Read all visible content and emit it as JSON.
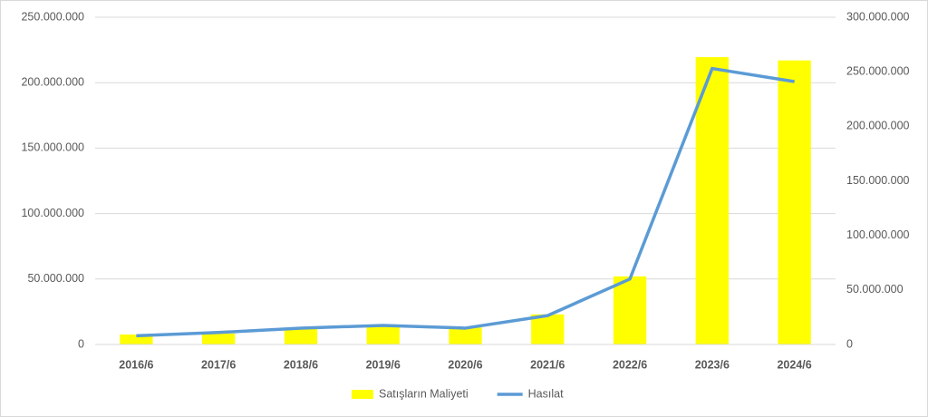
{
  "chart_data": {
    "type": "bar_line",
    "categories": [
      "2016/6",
      "2017/6",
      "2018/6",
      "2019/6",
      "2020/6",
      "2021/6",
      "2022/6",
      "2023/6",
      "2024/6"
    ],
    "series": [
      {
        "name": "Satışların Maliyeti",
        "type": "bar",
        "color": "#ffff00",
        "values": [
          7600000,
          8300000,
          12000000,
          15000000,
          13000000,
          23000000,
          52000000,
          219500000,
          217000000
        ]
      },
      {
        "name": "Hasılat",
        "type": "line",
        "axis": "y2",
        "color": "#5b9bd5",
        "values": [
          8000000,
          11000000,
          15000000,
          17500000,
          15000000,
          26500000,
          60000000,
          253000000,
          241000000
        ]
      }
    ],
    "ylim": [
      0,
      250000000
    ],
    "yticks": [
      0,
      {
        "value": 50000000,
        "label": "50.000.000"
      },
      {
        "value": 100000000,
        "label": "100.000.000"
      },
      {
        "value": 150000000,
        "label": "150.000.000"
      },
      {
        "value": 200000000,
        "label": "200.000.000"
      },
      {
        "value": 250000000,
        "label": "250.000.000"
      }
    ],
    "y2lim": [
      0,
      300000000
    ],
    "y2ticks": [
      0,
      {
        "value": 50000000,
        "label": "50.000.000"
      },
      {
        "value": 100000000,
        "label": "100.000.000"
      },
      {
        "value": 150000000,
        "label": "150.000.000"
      },
      {
        "value": 200000000,
        "label": "200.000.000"
      },
      {
        "value": 250000000,
        "label": "250.000.000"
      },
      {
        "value": 300000000,
        "label": "300.000.000"
      }
    ],
    "grid": true,
    "legend": "bottom"
  }
}
